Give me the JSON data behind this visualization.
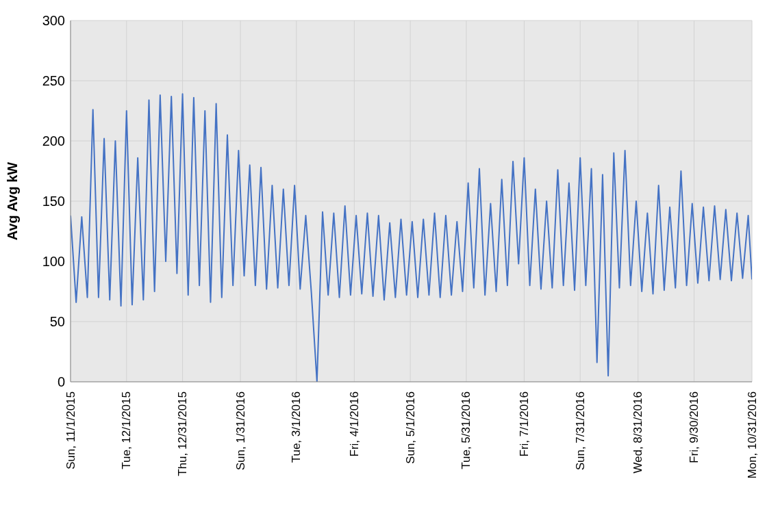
{
  "chart_data": {
    "type": "line",
    "ylabel": "Avg Avg kW",
    "x": [
      "2015-11-01",
      "2015-11-04",
      "2015-11-07",
      "2015-11-10",
      "2015-11-13",
      "2015-11-16",
      "2015-11-19",
      "2015-11-22",
      "2015-11-25",
      "2015-11-28",
      "2015-12-01",
      "2015-12-04",
      "2015-12-07",
      "2015-12-10",
      "2015-12-13",
      "2015-12-16",
      "2015-12-19",
      "2015-12-22",
      "2015-12-25",
      "2015-12-28",
      "2015-12-31",
      "2016-01-03",
      "2016-01-06",
      "2016-01-09",
      "2016-01-12",
      "2016-01-15",
      "2016-01-18",
      "2016-01-21",
      "2016-01-24",
      "2016-01-27",
      "2016-01-30",
      "2016-02-02",
      "2016-02-05",
      "2016-02-08",
      "2016-02-11",
      "2016-02-14",
      "2016-02-17",
      "2016-02-20",
      "2016-02-23",
      "2016-02-26",
      "2016-02-29",
      "2016-03-03",
      "2016-03-06",
      "2016-03-09",
      "2016-03-12",
      "2016-03-15",
      "2016-03-18",
      "2016-03-21",
      "2016-03-24",
      "2016-03-27",
      "2016-03-30",
      "2016-04-02",
      "2016-04-05",
      "2016-04-08",
      "2016-04-11",
      "2016-04-14",
      "2016-04-17",
      "2016-04-20",
      "2016-04-23",
      "2016-04-26",
      "2016-04-29",
      "2016-05-02",
      "2016-05-05",
      "2016-05-08",
      "2016-05-11",
      "2016-05-14",
      "2016-05-17",
      "2016-05-20",
      "2016-05-23",
      "2016-05-26",
      "2016-05-29",
      "2016-06-01",
      "2016-06-04",
      "2016-06-07",
      "2016-06-10",
      "2016-06-13",
      "2016-06-16",
      "2016-06-19",
      "2016-06-22",
      "2016-06-25",
      "2016-06-28",
      "2016-07-01",
      "2016-07-04",
      "2016-07-07",
      "2016-07-10",
      "2016-07-13",
      "2016-07-16",
      "2016-07-19",
      "2016-07-22",
      "2016-07-25",
      "2016-07-28",
      "2016-07-31",
      "2016-08-03",
      "2016-08-06",
      "2016-08-09",
      "2016-08-12",
      "2016-08-15",
      "2016-08-18",
      "2016-08-21",
      "2016-08-24",
      "2016-08-27",
      "2016-08-30",
      "2016-09-02",
      "2016-09-05",
      "2016-09-08",
      "2016-09-11",
      "2016-09-14",
      "2016-09-17",
      "2016-09-20",
      "2016-09-23",
      "2016-09-26",
      "2016-09-29",
      "2016-10-02",
      "2016-10-05",
      "2016-10-08",
      "2016-10-11",
      "2016-10-14",
      "2016-10-17",
      "2016-10-20",
      "2016-10-23",
      "2016-10-26",
      "2016-10-29",
      "2016-10-31"
    ],
    "series": [
      {
        "color": "#4472c4",
        "values": [
          138,
          66,
          137,
          70,
          226,
          70,
          202,
          68,
          200,
          63,
          225,
          64,
          186,
          68,
          234,
          75,
          238,
          100,
          237,
          90,
          239,
          72,
          236,
          80,
          225,
          66,
          231,
          70,
          205,
          80,
          192,
          88,
          180,
          80,
          178,
          77,
          163,
          78,
          160,
          80,
          163,
          77,
          138,
          74,
          0,
          141,
          72,
          140,
          70,
          146,
          72,
          138,
          73,
          140,
          71,
          138,
          68,
          132,
          70,
          135,
          72,
          133,
          70,
          135,
          72,
          140,
          70,
          138,
          72,
          133,
          75,
          165,
          78,
          177,
          72,
          148,
          75,
          168,
          80,
          183,
          98,
          186,
          80,
          160,
          77,
          150,
          78,
          176,
          80,
          165,
          76,
          186,
          80,
          177,
          16,
          172,
          5,
          190,
          78,
          192,
          80,
          150,
          75,
          140,
          73,
          163,
          76,
          145,
          78,
          175,
          80,
          148,
          82,
          145,
          84,
          146,
          85,
          143,
          84,
          140,
          86,
          138,
          85
        ]
      }
    ],
    "xlim": [
      "2015-11-01",
      "2016-10-31"
    ],
    "xticks": [
      {
        "value": "2015-11-01",
        "label": "Sun, 11/1/2015"
      },
      {
        "value": "2015-12-01",
        "label": "Tue, 12/1/2015"
      },
      {
        "value": "2015-12-31",
        "label": "Thu, 12/31/2015"
      },
      {
        "value": "2016-01-31",
        "label": "Sun, 1/31/2016"
      },
      {
        "value": "2016-03-01",
        "label": "Tue, 3/1/2016"
      },
      {
        "value": "2016-04-01",
        "label": "Fri, 4/1/2016"
      },
      {
        "value": "2016-05-01",
        "label": "Sun, 5/1/2016"
      },
      {
        "value": "2016-05-31",
        "label": "Tue, 5/31/2016"
      },
      {
        "value": "2016-07-01",
        "label": "Fri, 7/1/2016"
      },
      {
        "value": "2016-07-31",
        "label": "Sun, 7/31/2016"
      },
      {
        "value": "2016-08-31",
        "label": "Wed, 8/31/2016"
      },
      {
        "value": "2016-09-30",
        "label": "Fri, 9/30/2016"
      },
      {
        "value": "2016-10-31",
        "label": "Mon, 10/31/2016"
      }
    ],
    "ylim": [
      0,
      300
    ],
    "yticks": [
      0,
      50,
      100,
      150,
      200,
      250,
      300
    ],
    "grid": true
  }
}
